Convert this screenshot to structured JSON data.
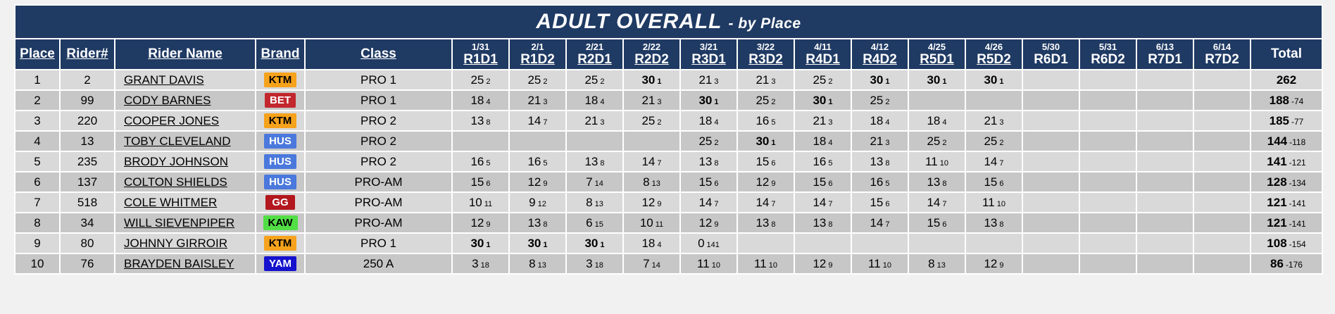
{
  "title": {
    "main": "ADULT OVERALL",
    "suffix": "- by Place"
  },
  "colors": {
    "header_bg": "#1f3a63",
    "row_light": "#d9d9d9",
    "row_dark": "#c7c7c7",
    "page_bg": "#f1f1f1"
  },
  "columns": {
    "place": "Place",
    "rider_num": "Rider#",
    "rider_name": "Rider Name",
    "brand": "Brand",
    "class": "Class",
    "total": "Total",
    "rounds": [
      {
        "date": "1/31",
        "code": "R1D1",
        "linked": true
      },
      {
        "date": "2/1",
        "code": "R1D2",
        "linked": true
      },
      {
        "date": "2/21",
        "code": "R2D1",
        "linked": true
      },
      {
        "date": "2/22",
        "code": "R2D2",
        "linked": true
      },
      {
        "date": "3/21",
        "code": "R3D1",
        "linked": true
      },
      {
        "date": "3/22",
        "code": "R3D2",
        "linked": true
      },
      {
        "date": "4/11",
        "code": "R4D1",
        "linked": true
      },
      {
        "date": "4/12",
        "code": "R4D2",
        "linked": true
      },
      {
        "date": "4/25",
        "code": "R5D1",
        "linked": true
      },
      {
        "date": "4/26",
        "code": "R5D2",
        "linked": true
      },
      {
        "date": "5/30",
        "code": "R6D1",
        "linked": false
      },
      {
        "date": "5/31",
        "code": "R6D2",
        "linked": false
      },
      {
        "date": "6/13",
        "code": "R7D1",
        "linked": false
      },
      {
        "date": "6/14",
        "code": "R7D2",
        "linked": false
      }
    ]
  },
  "brand_colors": {
    "KTM": {
      "bg": "#f6a21c",
      "fg": "#000000"
    },
    "BET": {
      "bg": "#c1272d",
      "fg": "#ffffff"
    },
    "HUS": {
      "bg": "#4a78dc",
      "fg": "#ffffff"
    },
    "GG": {
      "bg": "#b2181e",
      "fg": "#ffffff"
    },
    "KAW": {
      "bg": "#52de45",
      "fg": "#000000"
    },
    "YAM": {
      "bg": "#1512ce",
      "fg": "#ffffff"
    }
  },
  "rows": [
    {
      "place": "1",
      "rider_num": "2",
      "name": "GRANT DAVIS",
      "brand": "KTM",
      "class": "PRO 1",
      "scores": [
        {
          "pts": "25",
          "pos": "2"
        },
        {
          "pts": "25",
          "pos": "2"
        },
        {
          "pts": "25",
          "pos": "2"
        },
        {
          "pts": "30",
          "pos": "1",
          "win": true
        },
        {
          "pts": "21",
          "pos": "3"
        },
        {
          "pts": "21",
          "pos": "3"
        },
        {
          "pts": "25",
          "pos": "2"
        },
        {
          "pts": "30",
          "pos": "1",
          "win": true
        },
        {
          "pts": "30",
          "pos": "1",
          "win": true
        },
        {
          "pts": "30",
          "pos": "1",
          "win": true
        },
        null,
        null,
        null,
        null
      ],
      "total": "262",
      "deficit": ""
    },
    {
      "place": "2",
      "rider_num": "99",
      "name": "CODY BARNES",
      "brand": "BET",
      "class": "PRO 1",
      "scores": [
        {
          "pts": "18",
          "pos": "4"
        },
        {
          "pts": "21",
          "pos": "3"
        },
        {
          "pts": "18",
          "pos": "4"
        },
        {
          "pts": "21",
          "pos": "3"
        },
        {
          "pts": "30",
          "pos": "1",
          "win": true
        },
        {
          "pts": "25",
          "pos": "2"
        },
        {
          "pts": "30",
          "pos": "1",
          "win": true
        },
        {
          "pts": "25",
          "pos": "2"
        },
        null,
        null,
        null,
        null,
        null,
        null
      ],
      "total": "188",
      "deficit": "-74"
    },
    {
      "place": "3",
      "rider_num": "220",
      "name": "COOPER JONES",
      "brand": "KTM",
      "class": "PRO 2",
      "scores": [
        {
          "pts": "13",
          "pos": "8"
        },
        {
          "pts": "14",
          "pos": "7"
        },
        {
          "pts": "21",
          "pos": "3"
        },
        {
          "pts": "25",
          "pos": "2"
        },
        {
          "pts": "18",
          "pos": "4"
        },
        {
          "pts": "16",
          "pos": "5"
        },
        {
          "pts": "21",
          "pos": "3"
        },
        {
          "pts": "18",
          "pos": "4"
        },
        {
          "pts": "18",
          "pos": "4"
        },
        {
          "pts": "21",
          "pos": "3"
        },
        null,
        null,
        null,
        null
      ],
      "total": "185",
      "deficit": "-77"
    },
    {
      "place": "4",
      "rider_num": "13",
      "name": "TOBY CLEVELAND",
      "brand": "HUS",
      "class": "PRO 2",
      "scores": [
        null,
        null,
        null,
        null,
        {
          "pts": "25",
          "pos": "2"
        },
        {
          "pts": "30",
          "pos": "1",
          "win": true
        },
        {
          "pts": "18",
          "pos": "4"
        },
        {
          "pts": "21",
          "pos": "3"
        },
        {
          "pts": "25",
          "pos": "2"
        },
        {
          "pts": "25",
          "pos": "2"
        },
        null,
        null,
        null,
        null
      ],
      "total": "144",
      "deficit": "-118"
    },
    {
      "place": "5",
      "rider_num": "235",
      "name": "BRODY JOHNSON",
      "brand": "HUS",
      "class": "PRO 2",
      "scores": [
        {
          "pts": "16",
          "pos": "5"
        },
        {
          "pts": "16",
          "pos": "5"
        },
        {
          "pts": "13",
          "pos": "8"
        },
        {
          "pts": "14",
          "pos": "7"
        },
        {
          "pts": "13",
          "pos": "8"
        },
        {
          "pts": "15",
          "pos": "6"
        },
        {
          "pts": "16",
          "pos": "5"
        },
        {
          "pts": "13",
          "pos": "8"
        },
        {
          "pts": "11",
          "pos": "10"
        },
        {
          "pts": "14",
          "pos": "7"
        },
        null,
        null,
        null,
        null
      ],
      "total": "141",
      "deficit": "-121"
    },
    {
      "place": "6",
      "rider_num": "137",
      "name": "COLTON SHIELDS",
      "brand": "HUS",
      "class": "PRO-AM",
      "scores": [
        {
          "pts": "15",
          "pos": "6"
        },
        {
          "pts": "12",
          "pos": "9"
        },
        {
          "pts": "7",
          "pos": "14"
        },
        {
          "pts": "8",
          "pos": "13"
        },
        {
          "pts": "15",
          "pos": "6"
        },
        {
          "pts": "12",
          "pos": "9"
        },
        {
          "pts": "15",
          "pos": "6"
        },
        {
          "pts": "16",
          "pos": "5"
        },
        {
          "pts": "13",
          "pos": "8"
        },
        {
          "pts": "15",
          "pos": "6"
        },
        null,
        null,
        null,
        null
      ],
      "total": "128",
      "deficit": "-134"
    },
    {
      "place": "7",
      "rider_num": "518",
      "name": "COLE WHITMER",
      "brand": "GG",
      "class": "PRO-AM",
      "scores": [
        {
          "pts": "10",
          "pos": "11"
        },
        {
          "pts": "9",
          "pos": "12"
        },
        {
          "pts": "8",
          "pos": "13"
        },
        {
          "pts": "12",
          "pos": "9"
        },
        {
          "pts": "14",
          "pos": "7"
        },
        {
          "pts": "14",
          "pos": "7"
        },
        {
          "pts": "14",
          "pos": "7"
        },
        {
          "pts": "15",
          "pos": "6"
        },
        {
          "pts": "14",
          "pos": "7"
        },
        {
          "pts": "11",
          "pos": "10"
        },
        null,
        null,
        null,
        null
      ],
      "total": "121",
      "deficit": "-141"
    },
    {
      "place": "8",
      "rider_num": "34",
      "name": "WILL SIEVENPIPER",
      "brand": "KAW",
      "class": "PRO-AM",
      "scores": [
        {
          "pts": "12",
          "pos": "9"
        },
        {
          "pts": "13",
          "pos": "8"
        },
        {
          "pts": "6",
          "pos": "15"
        },
        {
          "pts": "10",
          "pos": "11"
        },
        {
          "pts": "12",
          "pos": "9"
        },
        {
          "pts": "13",
          "pos": "8"
        },
        {
          "pts": "13",
          "pos": "8"
        },
        {
          "pts": "14",
          "pos": "7"
        },
        {
          "pts": "15",
          "pos": "6"
        },
        {
          "pts": "13",
          "pos": "8"
        },
        null,
        null,
        null,
        null
      ],
      "total": "121",
      "deficit": "-141"
    },
    {
      "place": "9",
      "rider_num": "80",
      "name": "JOHNNY GIRROIR",
      "brand": "KTM",
      "class": "PRO 1",
      "scores": [
        {
          "pts": "30",
          "pos": "1",
          "win": true
        },
        {
          "pts": "30",
          "pos": "1",
          "win": true
        },
        {
          "pts": "30",
          "pos": "1",
          "win": true
        },
        {
          "pts": "18",
          "pos": "4"
        },
        {
          "pts": "0",
          "pos": "141"
        },
        null,
        null,
        null,
        null,
        null,
        null,
        null,
        null,
        null
      ],
      "total": "108",
      "deficit": "-154"
    },
    {
      "place": "10",
      "rider_num": "76",
      "name": "BRAYDEN BAISLEY",
      "brand": "YAM",
      "class": "250 A",
      "scores": [
        {
          "pts": "3",
          "pos": "18"
        },
        {
          "pts": "8",
          "pos": "13"
        },
        {
          "pts": "3",
          "pos": "18"
        },
        {
          "pts": "7",
          "pos": "14"
        },
        {
          "pts": "11",
          "pos": "10"
        },
        {
          "pts": "11",
          "pos": "10"
        },
        {
          "pts": "12",
          "pos": "9"
        },
        {
          "pts": "11",
          "pos": "10"
        },
        {
          "pts": "8",
          "pos": "13"
        },
        {
          "pts": "12",
          "pos": "9"
        },
        null,
        null,
        null,
        null
      ],
      "total": "86",
      "deficit": "-176"
    }
  ]
}
